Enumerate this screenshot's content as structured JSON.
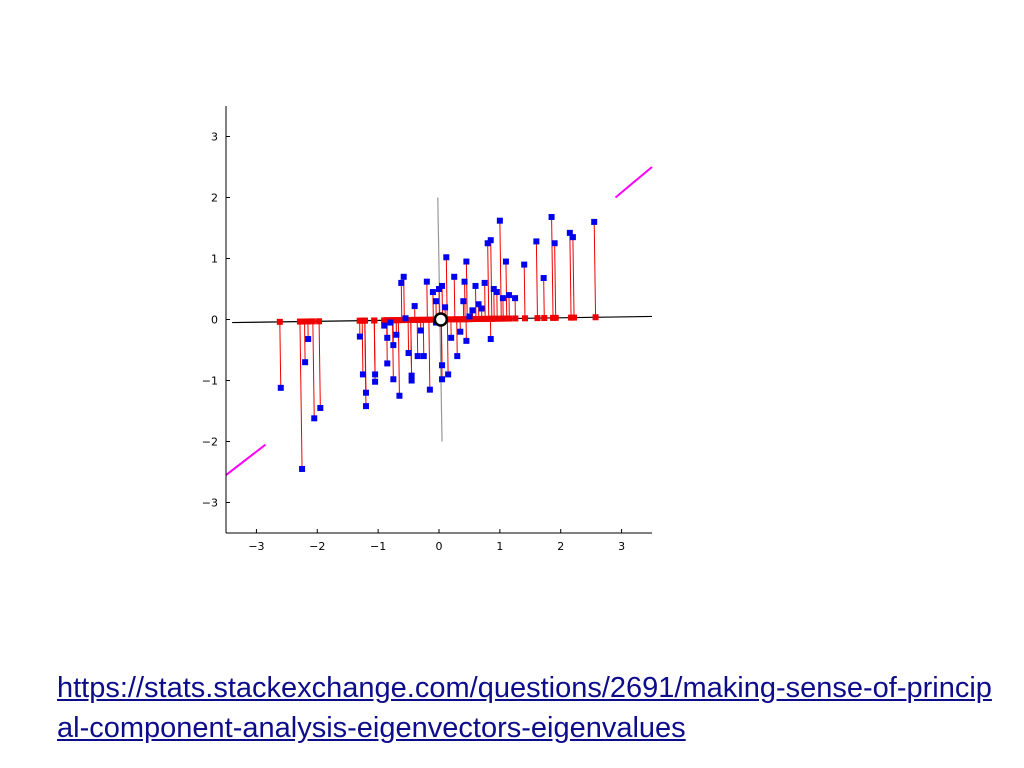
{
  "slide": {
    "link_line1": "https://stats.stackexchange.com/questions/2691/making-sense-of-",
    "link_line2": "principal-component-analysis-eigenvectors-eigenvalues"
  },
  "colors": {
    "data_points": "#0000ee",
    "projections": "#ee0000",
    "projection_lines": "#ee0000",
    "pc1_line": "#000000",
    "pc2_line": "#999999",
    "extension_lines": "#ff00ff",
    "axes": "#000000"
  },
  "chart_data": {
    "type": "scatter",
    "title": "",
    "xlabel": "",
    "ylabel": "",
    "xlim": [
      -3.5,
      3.5
    ],
    "ylim": [
      -3.5,
      3.5
    ],
    "xticks": [
      "−3",
      "−2",
      "−1",
      "0",
      "1",
      "2",
      "3"
    ],
    "yticks": [
      "3",
      "2",
      "1",
      "0",
      "−1",
      "−2",
      "−3"
    ],
    "grid": false,
    "legend": "none",
    "mean_point": [
      0.03,
      0.0
    ],
    "pc1_line": {
      "from": [
        -3.4,
        -0.05
      ],
      "to": [
        3.5,
        0.05
      ]
    },
    "pc2_line": {
      "from": [
        -0.02,
        2.0
      ],
      "to": [
        0.05,
        -2.0
      ]
    },
    "extension_segments": [
      {
        "from": [
          -3.5,
          -2.55
        ],
        "to": [
          -2.85,
          -2.05
        ]
      },
      {
        "from": [
          2.9,
          2.0
        ],
        "to": [
          3.5,
          2.5
        ]
      }
    ],
    "points": [
      [
        -2.6,
        -1.12
      ],
      [
        -2.25,
        -2.45
      ],
      [
        -2.2,
        -0.7
      ],
      [
        -2.15,
        -0.32
      ],
      [
        -2.05,
        -1.62
      ],
      [
        -1.95,
        -1.45
      ],
      [
        -1.3,
        -0.28
      ],
      [
        -1.25,
        -0.9
      ],
      [
        -1.2,
        -1.42
      ],
      [
        -1.2,
        -1.2
      ],
      [
        -1.05,
        -0.9
      ],
      [
        -1.05,
        -1.02
      ],
      [
        -0.9,
        -0.1
      ],
      [
        -0.85,
        -0.3
      ],
      [
        -0.85,
        -0.72
      ],
      [
        -0.8,
        -0.05
      ],
      [
        -0.75,
        -0.42
      ],
      [
        -0.75,
        -0.98
      ],
      [
        -0.7,
        -0.25
      ],
      [
        -0.65,
        -1.25
      ],
      [
        -0.62,
        0.6
      ],
      [
        -0.58,
        0.7
      ],
      [
        -0.55,
        0.02
      ],
      [
        -0.5,
        -0.55
      ],
      [
        -0.45,
        -0.92
      ],
      [
        -0.45,
        -1.0
      ],
      [
        -0.4,
        0.22
      ],
      [
        -0.35,
        -0.6
      ],
      [
        -0.3,
        -0.18
      ],
      [
        -0.25,
        -0.6
      ],
      [
        -0.2,
        0.62
      ],
      [
        -0.15,
        -1.15
      ],
      [
        -0.1,
        0.45
      ],
      [
        -0.05,
        0.3
      ],
      [
        -0.05,
        -0.05
      ],
      [
        0.0,
        0.5
      ],
      [
        0.05,
        0.55
      ],
      [
        0.05,
        -0.98
      ],
      [
        0.05,
        -0.75
      ],
      [
        0.1,
        0.2
      ],
      [
        0.12,
        1.02
      ],
      [
        0.15,
        -0.9
      ],
      [
        0.2,
        -0.3
      ],
      [
        0.25,
        0.7
      ],
      [
        0.3,
        -0.6
      ],
      [
        0.35,
        -0.2
      ],
      [
        0.4,
        0.3
      ],
      [
        0.42,
        0.62
      ],
      [
        0.45,
        -0.35
      ],
      [
        0.45,
        0.95
      ],
      [
        0.5,
        0.05
      ],
      [
        0.55,
        0.15
      ],
      [
        0.6,
        0.55
      ],
      [
        0.65,
        0.25
      ],
      [
        0.7,
        0.18
      ],
      [
        0.75,
        0.6
      ],
      [
        0.8,
        1.25
      ],
      [
        0.85,
        1.3
      ],
      [
        0.85,
        -0.32
      ],
      [
        0.9,
        0.5
      ],
      [
        0.95,
        0.45
      ],
      [
        1.0,
        1.62
      ],
      [
        1.05,
        0.35
      ],
      [
        1.1,
        0.95
      ],
      [
        1.15,
        0.4
      ],
      [
        1.25,
        0.35
      ],
      [
        1.4,
        0.9
      ],
      [
        1.6,
        1.28
      ],
      [
        1.72,
        0.68
      ],
      [
        1.85,
        1.68
      ],
      [
        1.9,
        1.25
      ],
      [
        2.15,
        1.42
      ],
      [
        2.2,
        1.35
      ],
      [
        2.55,
        1.6
      ]
    ]
  }
}
